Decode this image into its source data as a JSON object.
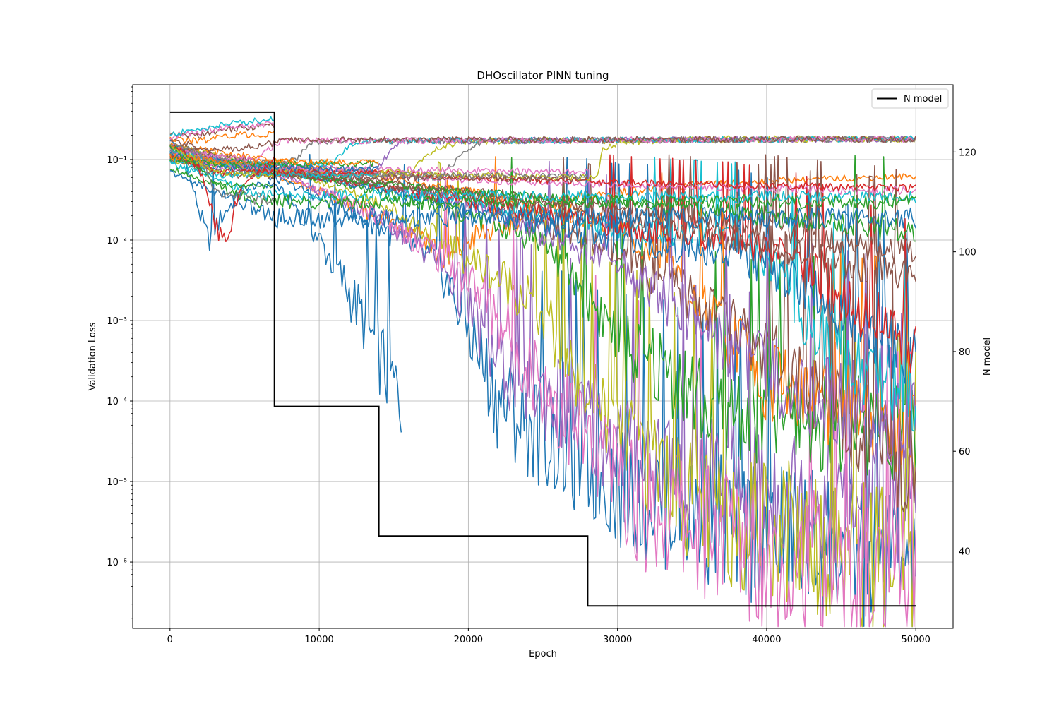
{
  "chart_data": {
    "type": "line",
    "title": "DHOscillator PINN tuning",
    "xlabel": "Epoch",
    "ylabel": "Validation Loss",
    "y2label": "N model",
    "xlim": [
      -2500,
      52500
    ],
    "ylim": [
      1.5e-07,
      0.85
    ],
    "y_scale": "log",
    "y2lim": [
      24.5,
      133.5
    ],
    "x_ticks": [
      0,
      10000,
      20000,
      30000,
      40000,
      50000
    ],
    "y_ticks": [
      1e-06,
      1e-05,
      0.0001,
      0.001,
      0.01,
      0.1
    ],
    "y_tick_labels": [
      "10⁻⁶",
      "10⁻⁵",
      "10⁻⁴",
      "10⁻³",
      "10⁻²",
      "10⁻¹"
    ],
    "y2_ticks": [
      40,
      60,
      80,
      100,
      120
    ],
    "grid": true,
    "legend": {
      "placement": "top-right",
      "entries": [
        "N model"
      ]
    },
    "palette": [
      "#1f77b4",
      "#ff7f0e",
      "#2ca02c",
      "#d62728",
      "#9467bd",
      "#8c564b",
      "#e377c2",
      "#7f7f7f",
      "#bcbd22",
      "#17becf"
    ],
    "n_model_series": {
      "name": "N model",
      "color": "#000000",
      "axis": "right",
      "x": [
        0,
        7000,
        7000,
        14000,
        14000,
        28000,
        28000,
        50000
      ],
      "y": [
        128,
        128,
        69,
        69,
        43,
        43,
        29,
        29
      ]
    },
    "loss_series": [
      {
        "color": "#1f77b4",
        "x": [
          0,
          1000,
          2500,
          3500,
          5000,
          7000,
          9000,
          11000,
          13000,
          15000,
          15500
        ],
        "y": [
          0.18,
          0.1,
          0.01,
          0.02,
          0.045,
          0.05,
          0.02,
          0.005,
          0.001,
          0.00015,
          0.0001
        ]
      },
      {
        "color": "#ff7f0e",
        "x": [
          0,
          5000,
          10000,
          14000,
          17000,
          18500,
          20000,
          24000,
          28000,
          33000,
          40000,
          50000
        ],
        "y": [
          0.15,
          0.08,
          0.04,
          0.02,
          0.012,
          0.005,
          0.01,
          0.02,
          0.035,
          0.045,
          0.055,
          0.062
        ]
      },
      {
        "color": "#1f77b4",
        "x": [
          0,
          8000,
          14000,
          18000,
          20000,
          22000,
          26000,
          30000,
          38000,
          50000
        ],
        "y": [
          0.15,
          0.05,
          0.015,
          0.005,
          0.0008,
          0.0001,
          3e-05,
          1e-05,
          3e-06,
          1e-06
        ]
      },
      {
        "color": "#9467bd",
        "x": [
          0,
          8000,
          14000,
          18000,
          20000,
          22000,
          26000,
          30000,
          38000,
          50000
        ],
        "y": [
          0.15,
          0.06,
          0.02,
          0.006,
          0.0015,
          0.0003,
          0.0001,
          3e-05,
          1e-05,
          4e-06
        ]
      },
      {
        "color": "#bcbd22",
        "x": [
          0,
          8000,
          14000,
          20000,
          24000,
          27000,
          30000,
          36000,
          44000,
          50000
        ],
        "y": [
          0.15,
          0.07,
          0.03,
          0.006,
          0.002,
          0.0003,
          5e-05,
          5e-06,
          2e-06,
          9e-07
        ]
      },
      {
        "color": "#e377c2",
        "x": [
          0,
          8000,
          14000,
          19000,
          21000,
          24000,
          28000,
          32000,
          40000,
          50000
        ],
        "y": [
          0.14,
          0.06,
          0.02,
          0.005,
          0.002,
          0.0003,
          3e-05,
          5e-06,
          1.5e-06,
          5e-07
        ]
      },
      {
        "color": "#2ca02c",
        "x": [
          0,
          8000,
          14000,
          20000,
          25000,
          28000,
          31000,
          34000,
          36000,
          50000
        ],
        "y": [
          0.14,
          0.07,
          0.04,
          0.02,
          0.01,
          0.002,
          0.0004,
          0.0002,
          8e-05,
          5e-05
        ]
      },
      {
        "color": "#ff7f0e",
        "x": [
          0,
          10000,
          20000,
          30000,
          33000,
          35000,
          40000,
          50000
        ],
        "y": [
          0.15,
          0.08,
          0.04,
          0.015,
          0.006,
          0.002,
          0.0002,
          5e-05
        ]
      },
      {
        "color": "#8c564b",
        "x": [
          0,
          10000,
          20000,
          28000,
          32000,
          36000,
          40000,
          44000,
          50000
        ],
        "y": [
          0.14,
          0.07,
          0.035,
          0.01,
          0.004,
          0.0015,
          0.0004,
          8e-05,
          2e-05
        ]
      },
      {
        "color": "#9467bd",
        "x": [
          0,
          10000,
          20000,
          30000,
          36000,
          42000,
          50000
        ],
        "y": [
          0.13,
          0.06,
          0.03,
          0.005,
          0.0008,
          0.00015,
          5e-05
        ]
      },
      {
        "color": "#17becf",
        "x": [
          0,
          10000,
          20000,
          30000,
          38000,
          41000,
          43000,
          46000,
          50000
        ],
        "y": [
          0.12,
          0.06,
          0.03,
          0.015,
          0.01,
          0.004,
          0.0008,
          0.0003,
          0.00015
        ]
      },
      {
        "color": "#1f77b4",
        "x": [
          0,
          10000,
          20000,
          30000,
          38000,
          42000,
          46000,
          50000
        ],
        "y": [
          0.12,
          0.06,
          0.025,
          0.01,
          0.007,
          0.003,
          0.001,
          0.0003
        ]
      },
      {
        "color": "#d62728",
        "x": [
          0,
          10000,
          20000,
          30000,
          38000,
          42000,
          46000,
          50000
        ],
        "y": [
          0.12,
          0.06,
          0.03,
          0.015,
          0.01,
          0.006,
          0.0015,
          0.0005
        ]
      },
      {
        "color": "#8c564b",
        "x": [
          0,
          10000,
          20000,
          30000,
          40000,
          50000
        ],
        "y": [
          0.11,
          0.06,
          0.035,
          0.02,
          0.009,
          0.004
        ]
      },
      {
        "color": "#8c564b",
        "x": [
          0,
          10000,
          20000,
          30000,
          40000,
          50000
        ],
        "y": [
          0.1,
          0.06,
          0.04,
          0.025,
          0.015,
          0.0065
        ]
      },
      {
        "color": "#2ca02c",
        "x": [
          0,
          10000,
          20000,
          30000,
          40000,
          50000
        ],
        "y": [
          0.1,
          0.06,
          0.04,
          0.03,
          0.02,
          0.013
        ]
      },
      {
        "color": "#e377c2",
        "x": [
          0,
          10000,
          20000,
          30000,
          40000,
          50000
        ],
        "y": [
          0.1,
          0.07,
          0.055,
          0.048,
          0.044,
          0.04
        ]
      },
      {
        "color": "#d62728",
        "x": [
          0,
          10000,
          20000,
          30000,
          40000,
          50000
        ],
        "y": [
          0.1,
          0.075,
          0.06,
          0.052,
          0.047,
          0.044
        ]
      },
      {
        "color": "#17becf",
        "x": [
          0,
          6000,
          50000
        ],
        "y": [
          0.09,
          0.036,
          0.034
        ]
      },
      {
        "color": "#2ca02c",
        "x": [
          0,
          6000,
          50000
        ],
        "y": [
          0.08,
          0.03,
          0.03
        ]
      },
      {
        "color": "#1f77b4",
        "x": [
          0,
          7000,
          50000
        ],
        "y": [
          0.07,
          0.019,
          0.019
        ]
      },
      {
        "color": "#bcbd22",
        "x": [
          0,
          7000,
          28000,
          28600,
          29000,
          30000,
          34000,
          50000
        ],
        "y": [
          0.1,
          0.07,
          0.06,
          0.06,
          0.13,
          0.16,
          0.18,
          0.18
        ]
      },
      {
        "color": "#7f7f7f",
        "x": [
          0,
          5000,
          15000,
          18000,
          19000,
          20000,
          21000,
          50000
        ],
        "y": [
          0.12,
          0.08,
          0.065,
          0.06,
          0.09,
          0.13,
          0.17,
          0.18
        ]
      },
      {
        "color": "#bcbd22",
        "x": [
          0,
          5000,
          14000,
          16000,
          17000,
          18000,
          20000,
          50000
        ],
        "y": [
          0.12,
          0.08,
          0.07,
          0.07,
          0.1,
          0.14,
          0.17,
          0.18
        ]
      },
      {
        "color": "#9467bd",
        "x": [
          0,
          4000,
          12000,
          14000,
          14500,
          15500,
          50000
        ],
        "y": [
          0.13,
          0.09,
          0.075,
          0.08,
          0.11,
          0.17,
          0.18
        ]
      },
      {
        "color": "#17becf",
        "x": [
          0,
          3000,
          9000,
          11000,
          11500,
          12500,
          50000
        ],
        "y": [
          0.13,
          0.09,
          0.085,
          0.09,
          0.12,
          0.17,
          0.18
        ]
      },
      {
        "color": "#7f7f7f",
        "x": [
          0,
          2000,
          7000,
          8500,
          9000,
          10000,
          50000
        ],
        "y": [
          0.14,
          0.1,
          0.09,
          0.1,
          0.14,
          0.17,
          0.18
        ]
      },
      {
        "color": "#e377c2",
        "x": [
          0,
          1500,
          5500,
          6500,
          7500,
          50000
        ],
        "y": [
          0.15,
          0.12,
          0.1,
          0.13,
          0.17,
          0.18
        ]
      },
      {
        "color": "#8c564b",
        "x": [
          0,
          3000,
          6000,
          7000,
          7500,
          50000
        ],
        "y": [
          0.17,
          0.13,
          0.15,
          0.16,
          0.175,
          0.18
        ]
      },
      {
        "color": "#e377c2",
        "x": [
          0,
          3000,
          14000,
          28000
        ],
        "y": [
          0.13,
          0.08,
          0.075,
          0.07
        ]
      },
      {
        "color": "#7f7f7f",
        "x": [
          0,
          3000,
          14000,
          28000
        ],
        "y": [
          0.12,
          0.07,
          0.065,
          0.062
        ]
      },
      {
        "color": "#8c564b",
        "x": [
          0,
          3000,
          14000,
          28000
        ],
        "y": [
          0.11,
          0.065,
          0.06,
          0.057
        ]
      },
      {
        "color": "#1f77b4",
        "x": [
          0,
          3000,
          14000
        ],
        "y": [
          0.12,
          0.08,
          0.075
        ]
      },
      {
        "color": "#d62728",
        "x": [
          0,
          3000,
          14000
        ],
        "y": [
          0.11,
          0.07,
          0.068
        ]
      },
      {
        "color": "#17becf",
        "x": [
          0,
          3000,
          14000
        ],
        "y": [
          0.1,
          0.065,
          0.063
        ]
      },
      {
        "color": "#2ca02c",
        "x": [
          0,
          3000,
          14000
        ],
        "y": [
          0.1,
          0.09,
          0.088
        ]
      },
      {
        "color": "#ff7f0e",
        "x": [
          0,
          3000,
          14000
        ],
        "y": [
          0.11,
          0.095,
          0.092
        ]
      },
      {
        "color": "#d62728",
        "x": [
          0,
          1500,
          2200,
          2700,
          3200,
          3600,
          4200,
          5000,
          7000
        ],
        "y": [
          0.16,
          0.1,
          0.06,
          0.03,
          0.012,
          0.009,
          0.02,
          0.05,
          0.1
        ]
      },
      {
        "color": "#ff7f0e",
        "x": [
          0,
          2000,
          4000,
          7000
        ],
        "y": [
          0.18,
          0.17,
          0.2,
          0.21
        ]
      },
      {
        "color": "#8c564b",
        "x": [
          0,
          2000,
          4000,
          7000
        ],
        "y": [
          0.2,
          0.2,
          0.24,
          0.27
        ]
      },
      {
        "color": "#e377c2",
        "x": [
          0,
          2000,
          4000,
          7000
        ],
        "y": [
          0.19,
          0.22,
          0.25,
          0.28
        ]
      },
      {
        "color": "#17becf",
        "x": [
          0,
          2000,
          4000,
          7000
        ],
        "y": [
          0.2,
          0.24,
          0.28,
          0.32
        ]
      },
      {
        "color": "#2ca02c",
        "x": [
          0,
          1500,
          3000,
          7000
        ],
        "y": [
          0.15,
          0.09,
          0.05,
          0.045
        ]
      },
      {
        "color": "#bcbd22",
        "x": [
          0,
          1500,
          3000,
          7000
        ],
        "y": [
          0.15,
          0.1,
          0.07,
          0.06
        ]
      },
      {
        "color": "#7f7f7f",
        "x": [
          0,
          2000,
          3000,
          5000,
          7000
        ],
        "y": [
          0.16,
          0.12,
          0.04,
          0.035,
          0.03
        ]
      }
    ]
  }
}
